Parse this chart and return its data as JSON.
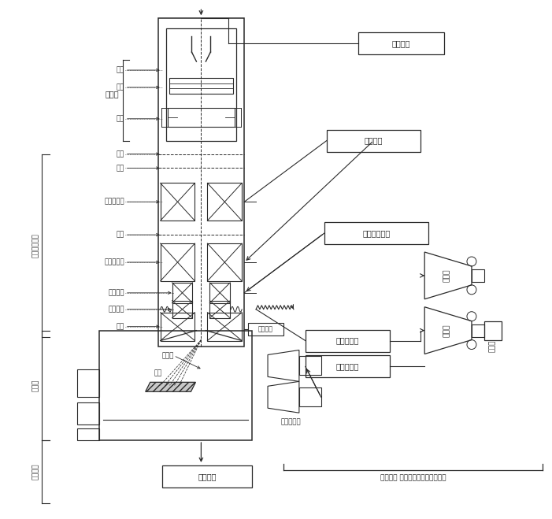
{
  "bg_color": "#ffffff",
  "lc": "#2a2a2a",
  "fs": 7.0,
  "fs_sm": 6.2,
  "components": {
    "cathode": "阴极",
    "grid": "栅极",
    "anode": "阳极",
    "electron_gun": "电子枪",
    "aperture": "光阑",
    "lens1": "第一聚光镜",
    "lens2": "第二聚光镜",
    "stigmator": "消象散器",
    "scan_coil": "扫描线圈",
    "objective": "物镜",
    "electron_beam": "电子束",
    "sample": "试样",
    "specimen_chamber": "样品室",
    "objective_aperture": "物镜光阑",
    "vacuum_system": "真空系统",
    "high_voltage": "高压电源",
    "lens_power": "透镜电源",
    "stigmator_power": "消象散器电源",
    "scan_gen": "扫描发生器",
    "video_amp": "视频放大器",
    "pmt": "光电倍增管",
    "crt_label": "显象管",
    "camera_label": "照相机",
    "signal_system": "信号检测 放大显示系统及电源系统",
    "optical_column": "电子光学镜筒"
  }
}
